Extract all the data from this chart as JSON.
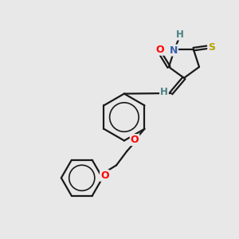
{
  "bg_color": "#e8e8e8",
  "bond_color": "#1a1a1a",
  "atom_colors": {
    "O": "#ff0000",
    "N": "#3a5fad",
    "S": "#b8a000",
    "H": "#4a8080",
    "C": "#1a1a1a"
  },
  "bond_width": 1.6,
  "font_size": 8.5,
  "fig_size": [
    3.0,
    3.0
  ],
  "dpi": 100
}
